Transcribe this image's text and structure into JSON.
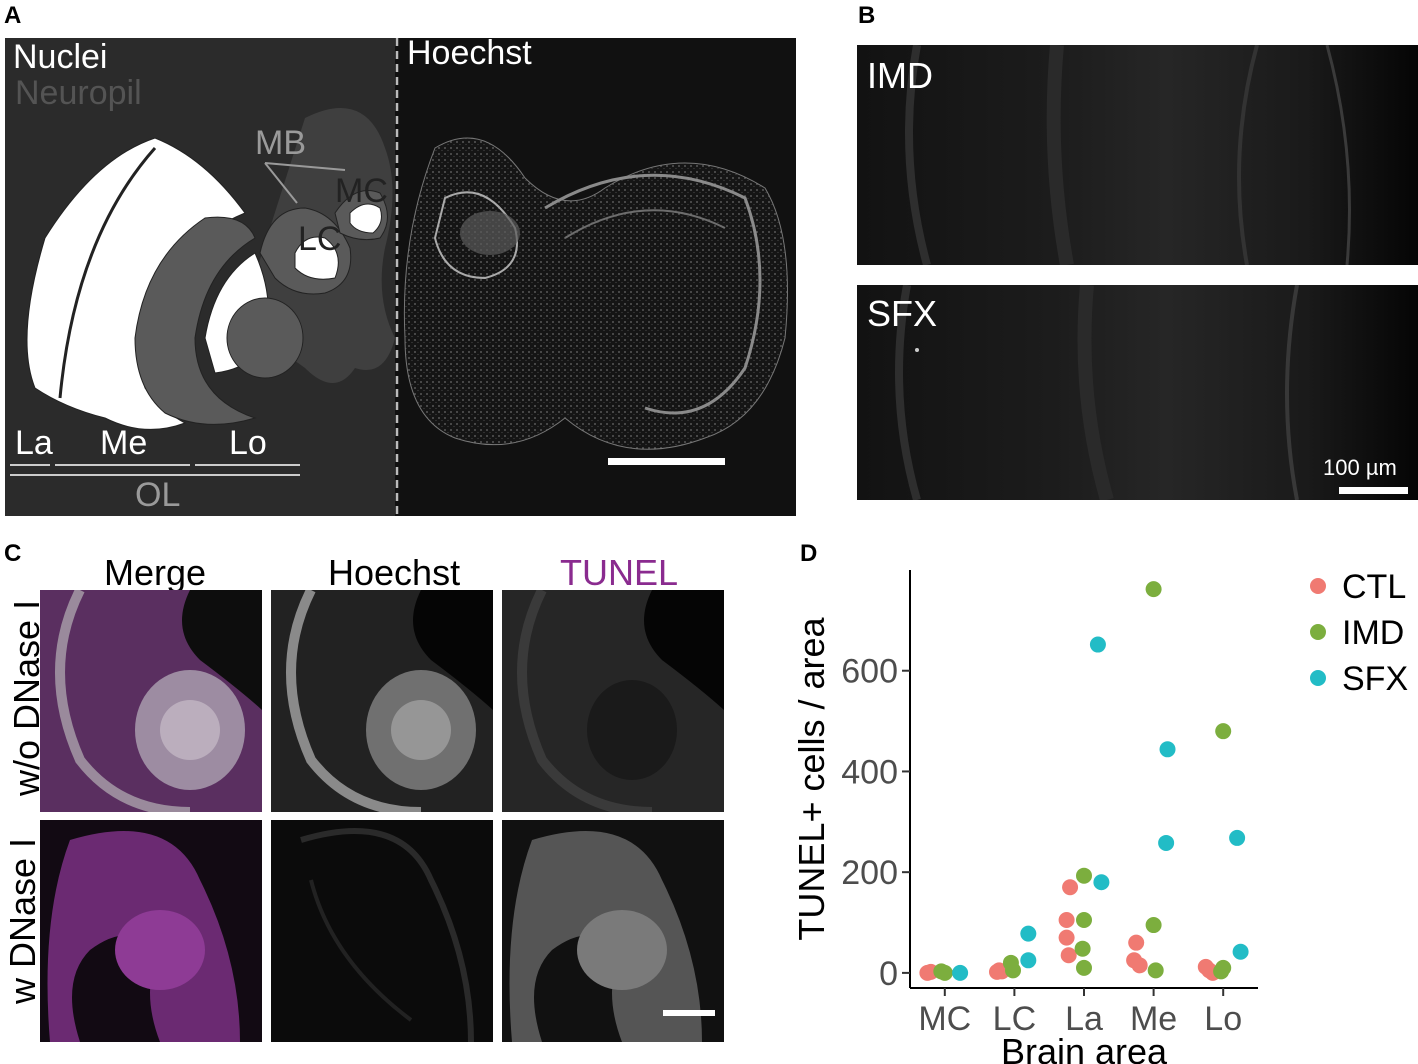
{
  "panels": {
    "A": {
      "letter": "A",
      "legend_nuclei": "Nuclei",
      "legend_neuropil": "Neuropil",
      "stain_label": "Hoechst",
      "regions": {
        "MB": "MB",
        "MC": "MC",
        "LC": "LC",
        "La": "La",
        "Me": "Me",
        "Lo": "Lo",
        "OL": "OL"
      }
    },
    "B": {
      "letter": "B",
      "top_label": "IMD",
      "bottom_label": "SFX",
      "scale_bar": "100 µm"
    },
    "C": {
      "letter": "C",
      "columns": [
        "Merge",
        "Hoechst",
        "TUNEL"
      ],
      "rows": [
        "w/o DNase I",
        "w DNase I"
      ],
      "tunel_color": "#8a2b8f"
    },
    "D": {
      "letter": "D"
    }
  },
  "chart_data": {
    "type": "scatter",
    "xlabel": "Brain area",
    "ylabel": "TUNEL+ cells / area",
    "categories": [
      "MC",
      "LC",
      "La",
      "Me",
      "Lo"
    ],
    "yticks": [
      0,
      200,
      400,
      600
    ],
    "ylim": [
      -30,
      800
    ],
    "legend_position": "top-right",
    "series": [
      {
        "name": "CTL",
        "color": "#f07a72",
        "points": [
          [
            "MC",
            0,
            -0.25
          ],
          [
            "MC",
            2,
            -0.2
          ],
          [
            "LC",
            2,
            -0.25
          ],
          [
            "LC",
            3,
            -0.18
          ],
          [
            "LC",
            5,
            -0.22
          ],
          [
            "La",
            170,
            -0.2
          ],
          [
            "La",
            105,
            -0.25
          ],
          [
            "La",
            70,
            -0.25
          ],
          [
            "La",
            35,
            -0.22
          ],
          [
            "Me",
            60,
            -0.25
          ],
          [
            "Me",
            25,
            -0.28
          ],
          [
            "Me",
            15,
            -0.2
          ],
          [
            "Lo",
            12,
            -0.25
          ],
          [
            "Lo",
            5,
            -0.2
          ],
          [
            "Lo",
            0,
            -0.15
          ]
        ]
      },
      {
        "name": "IMD",
        "color": "#7cae3e",
        "points": [
          [
            "MC",
            3,
            -0.05
          ],
          [
            "MC",
            0,
            0.0
          ],
          [
            "LC",
            20,
            -0.05
          ],
          [
            "LC",
            5,
            -0.02
          ],
          [
            "La",
            193,
            0.0
          ],
          [
            "La",
            105,
            0.0
          ],
          [
            "La",
            48,
            -0.02
          ],
          [
            "La",
            10,
            0.0
          ],
          [
            "Me",
            762,
            0.0
          ],
          [
            "Me",
            95,
            0.0
          ],
          [
            "Me",
            5,
            0.03
          ],
          [
            "Lo",
            480,
            0.0
          ],
          [
            "Lo",
            10,
            0.0
          ],
          [
            "Lo",
            3,
            -0.03
          ]
        ]
      },
      {
        "name": "SFX",
        "color": "#22bcc6",
        "points": [
          [
            "MC",
            0,
            0.22
          ],
          [
            "LC",
            78,
            0.2
          ],
          [
            "LC",
            25,
            0.2
          ],
          [
            "La",
            652,
            0.2
          ],
          [
            "La",
            180,
            0.25
          ],
          [
            "Me",
            444,
            0.2
          ],
          [
            "Me",
            258,
            0.18
          ],
          [
            "Lo",
            268,
            0.2
          ],
          [
            "Lo",
            42,
            0.25
          ]
        ]
      }
    ]
  }
}
